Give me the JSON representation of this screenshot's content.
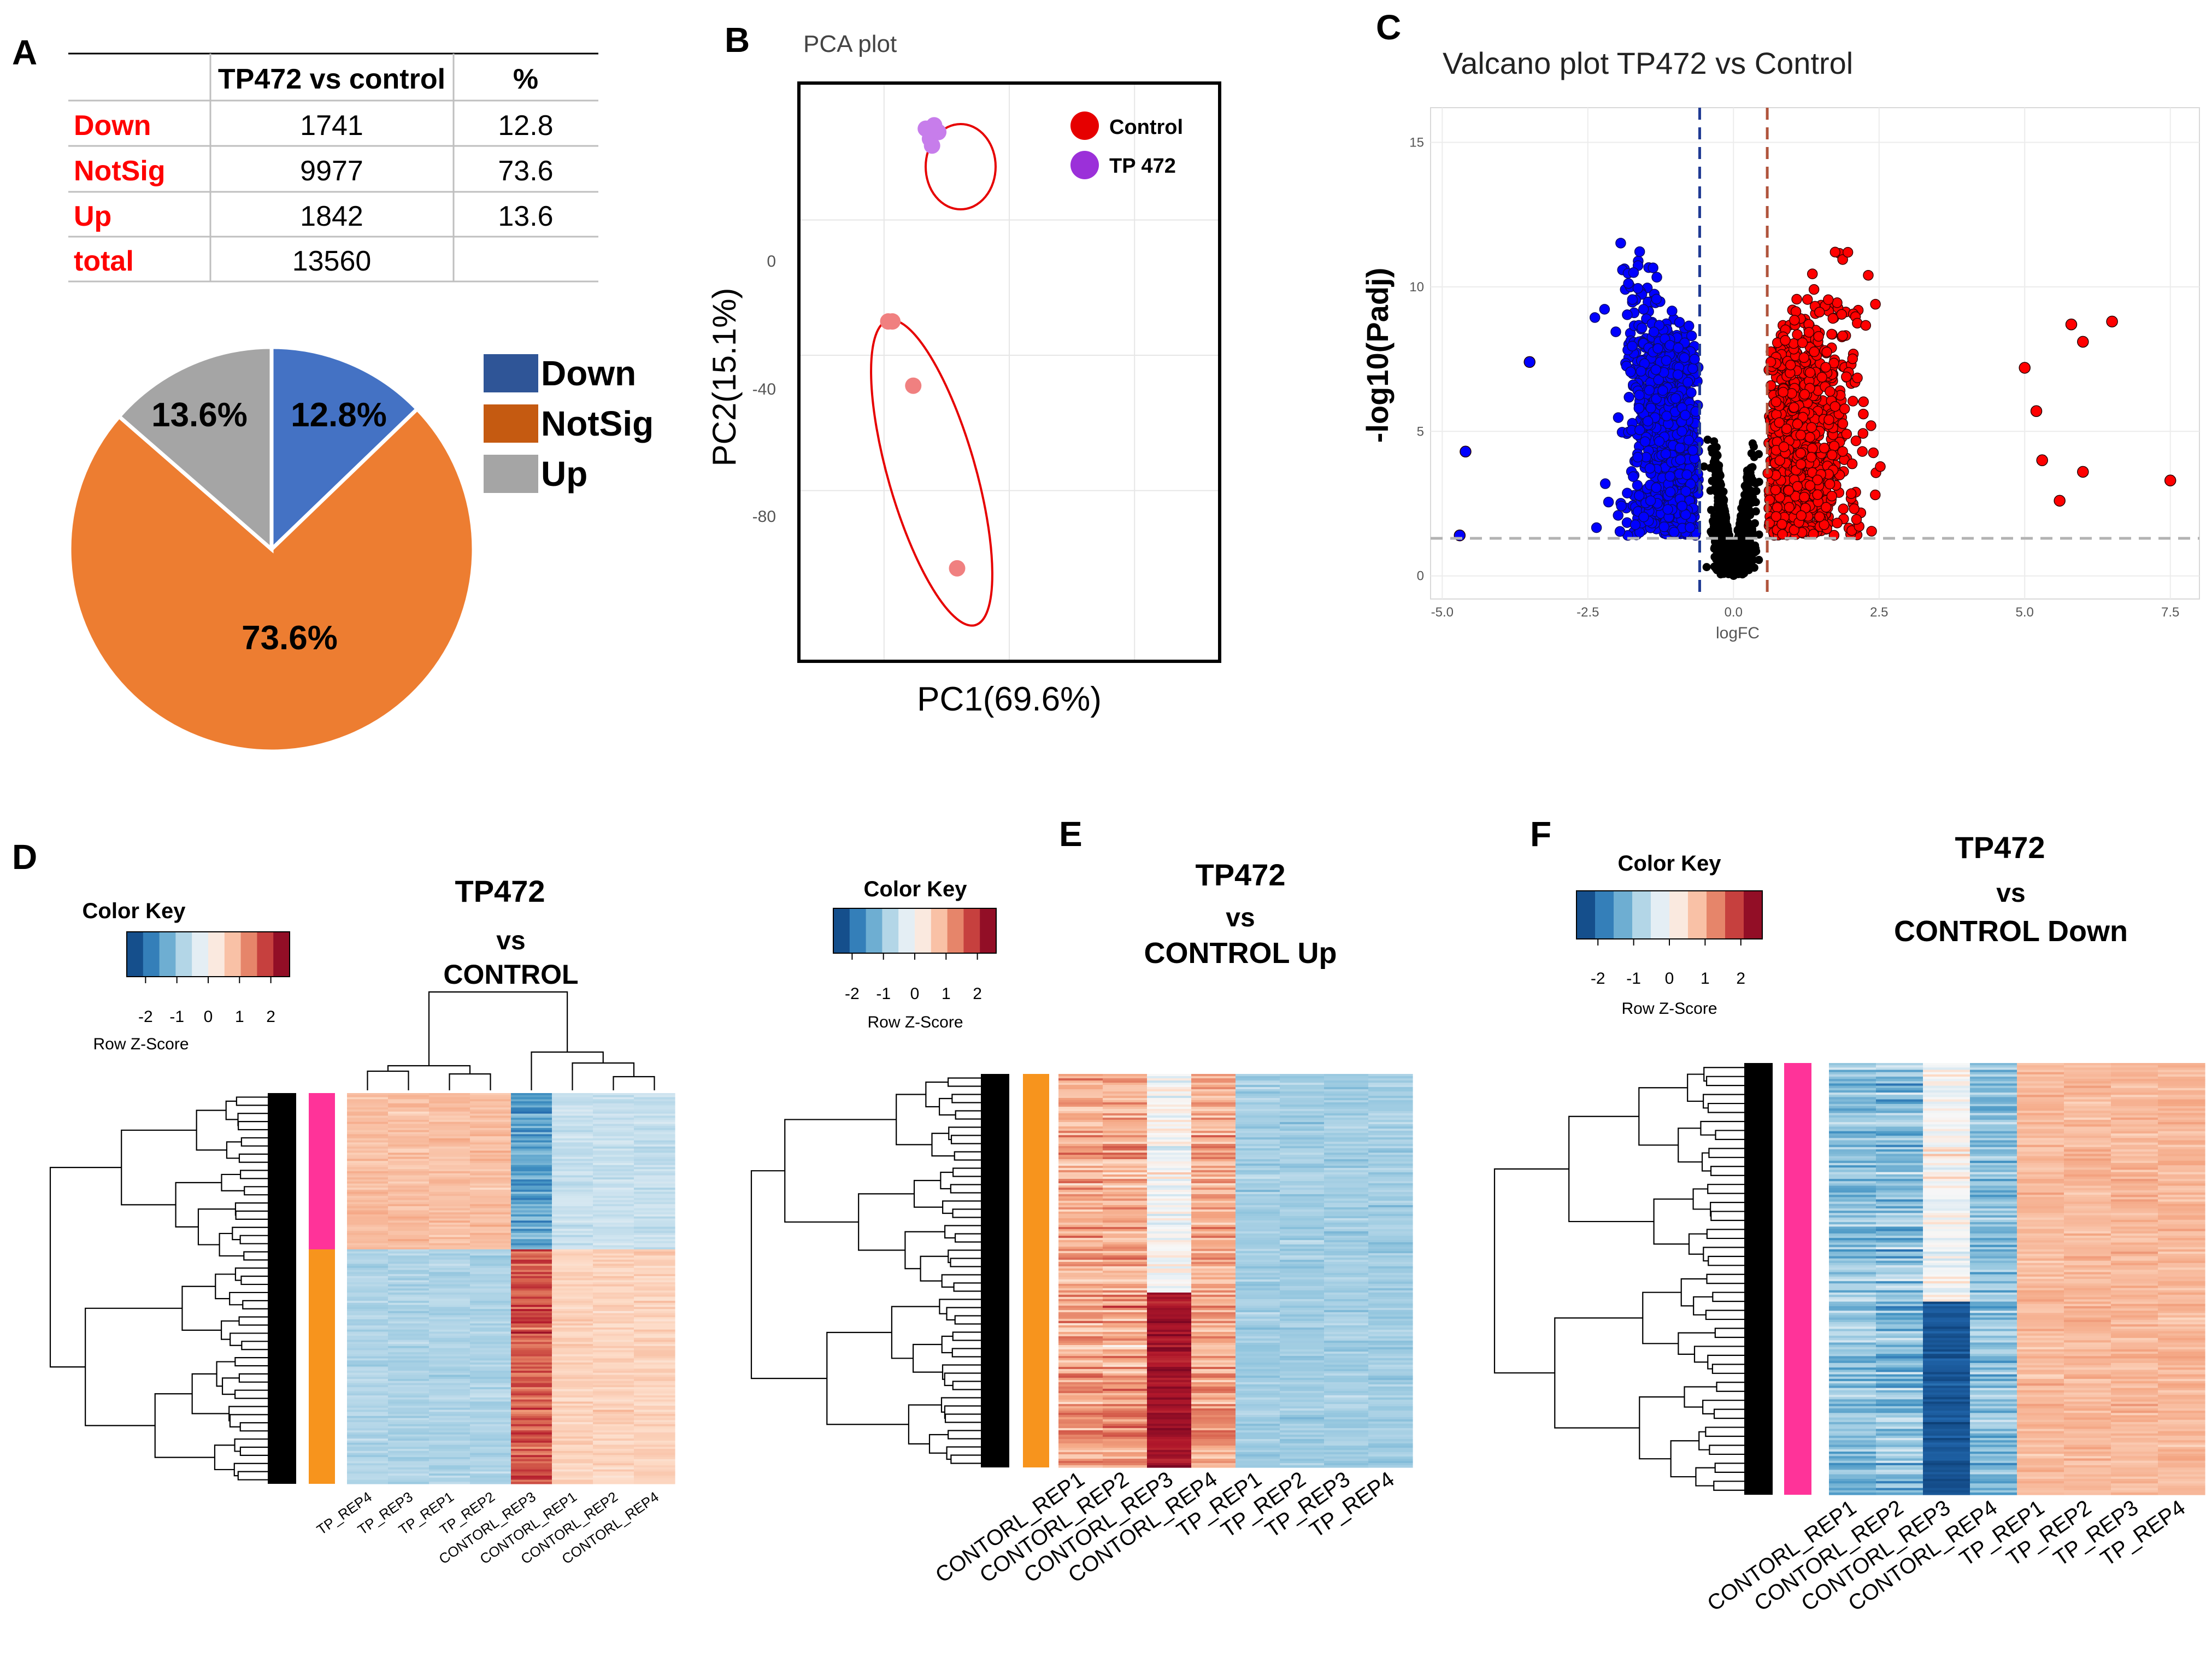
{
  "panels": {
    "A": "A",
    "B": "B",
    "C": "C",
    "D": "D",
    "E": "E",
    "F": "F"
  },
  "chart_data": [
    {
      "id": "A_table",
      "type": "table",
      "columns": [
        "",
        "TP472 vs control",
        "%"
      ],
      "rows": [
        {
          "label": "Down",
          "count": "1741",
          "pct": "12.8"
        },
        {
          "label": "NotSig",
          "count": "9977",
          "pct": "73.6"
        },
        {
          "label": "Up",
          "count": "1842",
          "pct": "13.6"
        },
        {
          "label": "total",
          "count": "13560",
          "pct": ""
        }
      ]
    },
    {
      "id": "A_pie",
      "type": "pie",
      "slices": [
        {
          "name": "Down",
          "value": 12.8,
          "label": "12.8%",
          "color": "#4472C4"
        },
        {
          "name": "NotSig",
          "value": 73.6,
          "label": "73.6%",
          "color": "#ED7D31"
        },
        {
          "name": "Up",
          "value": 13.6,
          "label": "13.6%",
          "color": "#A5A5A5"
        }
      ],
      "legend": [
        {
          "name": "Down",
          "color": "#2F5597"
        },
        {
          "name": "NotSig",
          "color": "#C55A11"
        },
        {
          "name": "Up",
          "color": "#A5A5A5"
        }
      ]
    },
    {
      "id": "B_pca",
      "type": "scatter",
      "title": "PCA plot",
      "xlabel": "PC1(69.6%)",
      "ylabel": "PC2(15.1%)",
      "yticks": [
        0,
        -40,
        -80
      ],
      "ylim": [
        -130,
        40
      ],
      "xlim": [
        -100,
        100
      ],
      "legend": [
        {
          "name": "Control",
          "color": "#E60000"
        },
        {
          "name": "TP 472",
          "color": "#9B30D9"
        }
      ],
      "series": [
        {
          "name": "Control",
          "points": [
            [
              -58,
              -30
            ],
            [
              -56,
              -30
            ],
            [
              -46,
              -49
            ],
            [
              -25,
              -103
            ]
          ]
        },
        {
          "name": "TP 472",
          "points": [
            [
              -40,
              27
            ],
            [
              -38,
              24
            ],
            [
              -37,
              22
            ],
            [
              -34,
              26
            ],
            [
              -36,
              28
            ]
          ]
        }
      ]
    },
    {
      "id": "C_volcano",
      "type": "scatter",
      "title": "Valcano plot TP472 vs Control",
      "xlabel": "logFC",
      "ylabel": "-log10(Padj)",
      "xticks": [
        "-5.0",
        "-2.5",
        "0.0",
        "2.5",
        "5.0",
        "7.5"
      ],
      "yticks": [
        "0",
        "5",
        "10",
        "15"
      ],
      "xlim": [
        -5.2,
        8.0
      ],
      "ylim": [
        -0.8,
        16.2
      ],
      "logfc_threshold": 0.58,
      "padj_threshold_neglog10": 1.3,
      "colors": {
        "down": "#0000FF",
        "up": "#FF0000",
        "notsig": "#000000"
      },
      "outliers": [
        {
          "x": -4.6,
          "y": 4.3
        },
        {
          "x": -4.7,
          "y": 1.4
        },
        {
          "x": -3.5,
          "y": 7.4
        },
        {
          "x": 7.5,
          "y": 3.3
        },
        {
          "x": 6.5,
          "y": 8.8
        },
        {
          "x": 6.0,
          "y": 8.1
        },
        {
          "x": 5.8,
          "y": 8.7
        },
        {
          "x": 6.0,
          "y": 3.6
        },
        {
          "x": 5.2,
          "y": 5.7
        },
        {
          "x": 5.0,
          "y": 7.2
        },
        {
          "x": 5.3,
          "y": 4.0
        },
        {
          "x": 5.6,
          "y": 2.6
        }
      ]
    },
    {
      "id": "D_heatmap",
      "type": "heatmap",
      "title_lines": [
        "TP472",
        "vs",
        "CONTROL"
      ],
      "color_key_title": "Color Key",
      "color_key_ticks": [
        "-2",
        "-1",
        "0",
        "1",
        "2"
      ],
      "color_key_label": "Row Z-Score",
      "columns": [
        "TP_REP4",
        "TP_REP3",
        "TP_REP1",
        "TP_REP2",
        "CONTORL_REP3",
        "CONTORL_REP1",
        "CONTORL_REP2",
        "CONTORL_REP4"
      ]
    },
    {
      "id": "E_heatmap",
      "type": "heatmap",
      "title_lines": [
        "TP472",
        "vs",
        "CONTROL Up"
      ],
      "color_key_title": "Color Key",
      "color_key_ticks": [
        "-2",
        "-1",
        "0",
        "1",
        "2"
      ],
      "color_key_label": "Row Z-Score",
      "columns": [
        "CONTORL_REP1",
        "CONTORL_REP2",
        "CONTORL_REP3",
        "CONTORL_REP4",
        "TP_REP1",
        "TP_REP2",
        "TP_REP3",
        "TP_REP4"
      ]
    },
    {
      "id": "F_heatmap",
      "type": "heatmap",
      "title_lines": [
        "TP472",
        "vs",
        "CONTROL Down"
      ],
      "color_key_title": "Color Key",
      "color_key_ticks": [
        "-2",
        "-1",
        "0",
        "1",
        "2"
      ],
      "color_key_label": "Row Z-Score",
      "columns": [
        "CONTORL_REP1",
        "CONTORL_REP2",
        "CONTORL_REP3",
        "CONTORL_REP4",
        "TP_REP1",
        "TP_REP2",
        "TP_REP3",
        "TP_REP4"
      ]
    }
  ]
}
